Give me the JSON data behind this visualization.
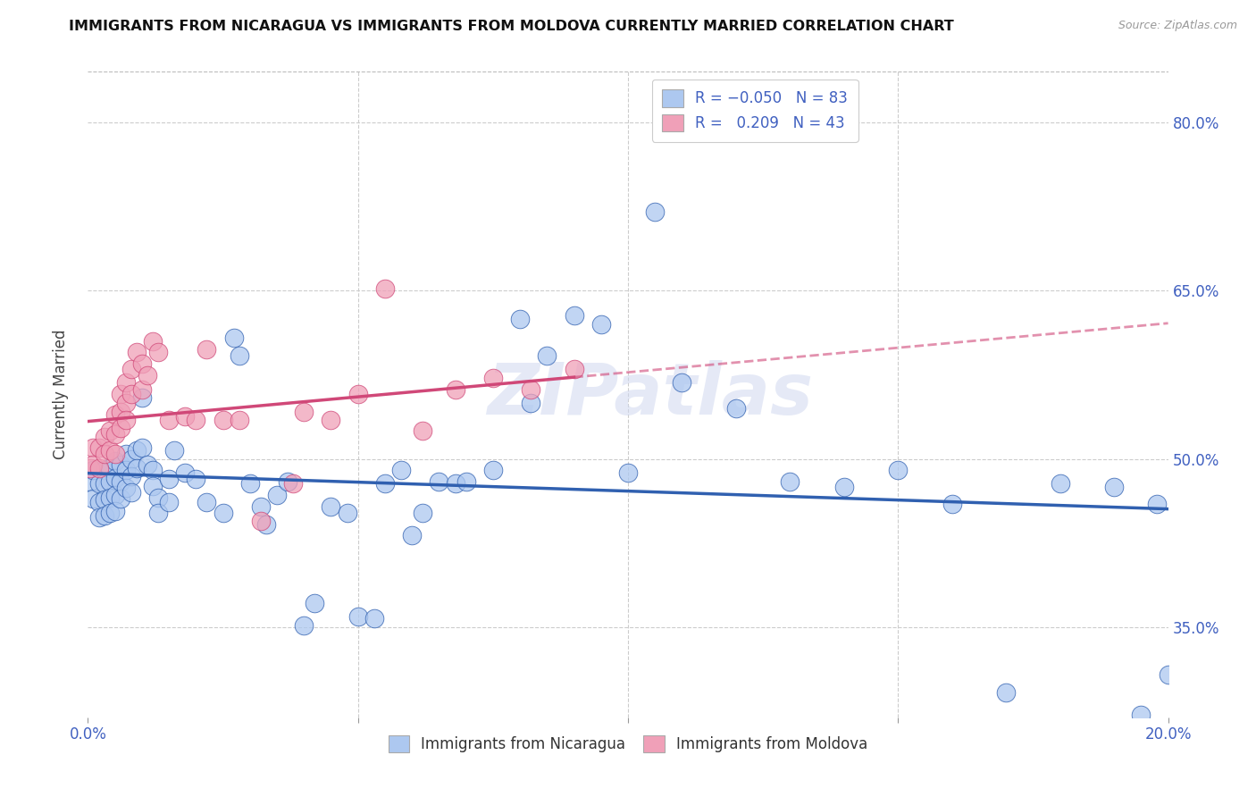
{
  "title": "IMMIGRANTS FROM NICARAGUA VS IMMIGRANTS FROM MOLDOVA CURRENTLY MARRIED CORRELATION CHART",
  "source": "Source: ZipAtlas.com",
  "ylabel": "Currently Married",
  "ytick_labels": [
    "35.0%",
    "50.0%",
    "65.0%",
    "80.0%"
  ],
  "ytick_values": [
    0.35,
    0.5,
    0.65,
    0.8
  ],
  "xlim": [
    0.0,
    0.2
  ],
  "ylim": [
    0.27,
    0.845
  ],
  "color_nicaragua": "#adc8f0",
  "color_moldova": "#f0a0b8",
  "color_line_nicaragua": "#3060b0",
  "color_line_moldova": "#d04878",
  "background": "#ffffff",
  "scatter_nicaragua_x": [
    0.0005,
    0.001,
    0.001,
    0.002,
    0.002,
    0.002,
    0.003,
    0.003,
    0.003,
    0.003,
    0.004,
    0.004,
    0.004,
    0.004,
    0.005,
    0.005,
    0.005,
    0.005,
    0.006,
    0.006,
    0.006,
    0.007,
    0.007,
    0.007,
    0.008,
    0.008,
    0.008,
    0.009,
    0.009,
    0.01,
    0.01,
    0.011,
    0.012,
    0.012,
    0.013,
    0.013,
    0.015,
    0.015,
    0.016,
    0.018,
    0.02,
    0.022,
    0.025,
    0.027,
    0.028,
    0.03,
    0.032,
    0.033,
    0.035,
    0.037,
    0.04,
    0.042,
    0.045,
    0.048,
    0.05,
    0.053,
    0.055,
    0.058,
    0.06,
    0.062,
    0.065,
    0.068,
    0.07,
    0.075,
    0.08,
    0.082,
    0.085,
    0.09,
    0.095,
    0.1,
    0.105,
    0.11,
    0.12,
    0.13,
    0.14,
    0.15,
    0.16,
    0.17,
    0.18,
    0.19,
    0.195,
    0.198,
    0.2
  ],
  "scatter_nicaragua_y": [
    0.48,
    0.49,
    0.465,
    0.478,
    0.462,
    0.448,
    0.49,
    0.478,
    0.464,
    0.45,
    0.492,
    0.48,
    0.466,
    0.452,
    0.498,
    0.483,
    0.468,
    0.454,
    0.495,
    0.48,
    0.465,
    0.505,
    0.49,
    0.474,
    0.5,
    0.485,
    0.47,
    0.508,
    0.492,
    0.555,
    0.51,
    0.495,
    0.49,
    0.476,
    0.466,
    0.452,
    0.482,
    0.462,
    0.508,
    0.488,
    0.482,
    0.462,
    0.452,
    0.608,
    0.592,
    0.478,
    0.458,
    0.442,
    0.468,
    0.48,
    0.352,
    0.372,
    0.458,
    0.452,
    0.36,
    0.358,
    0.478,
    0.49,
    0.432,
    0.452,
    0.48,
    0.478,
    0.48,
    0.49,
    0.625,
    0.55,
    0.592,
    0.628,
    0.62,
    0.488,
    0.72,
    0.568,
    0.545,
    0.48,
    0.475,
    0.49,
    0.46,
    0.292,
    0.478,
    0.475,
    0.272,
    0.46,
    0.308
  ],
  "scatter_moldova_x": [
    0.0005,
    0.001,
    0.001,
    0.002,
    0.002,
    0.003,
    0.003,
    0.004,
    0.004,
    0.005,
    0.005,
    0.005,
    0.006,
    0.006,
    0.006,
    0.007,
    0.007,
    0.007,
    0.008,
    0.008,
    0.009,
    0.01,
    0.01,
    0.011,
    0.012,
    0.013,
    0.015,
    0.018,
    0.02,
    0.022,
    0.025,
    0.028,
    0.032,
    0.038,
    0.04,
    0.045,
    0.05,
    0.055,
    0.062,
    0.068,
    0.075,
    0.082,
    0.09
  ],
  "scatter_moldova_y": [
    0.492,
    0.51,
    0.495,
    0.51,
    0.492,
    0.52,
    0.505,
    0.525,
    0.508,
    0.54,
    0.522,
    0.505,
    0.558,
    0.542,
    0.528,
    0.568,
    0.55,
    0.535,
    0.58,
    0.558,
    0.595,
    0.585,
    0.562,
    0.575,
    0.605,
    0.595,
    0.535,
    0.538,
    0.535,
    0.598,
    0.535,
    0.535,
    0.445,
    0.478,
    0.542,
    0.535,
    0.558,
    0.652,
    0.525,
    0.562,
    0.572,
    0.562,
    0.58
  ]
}
